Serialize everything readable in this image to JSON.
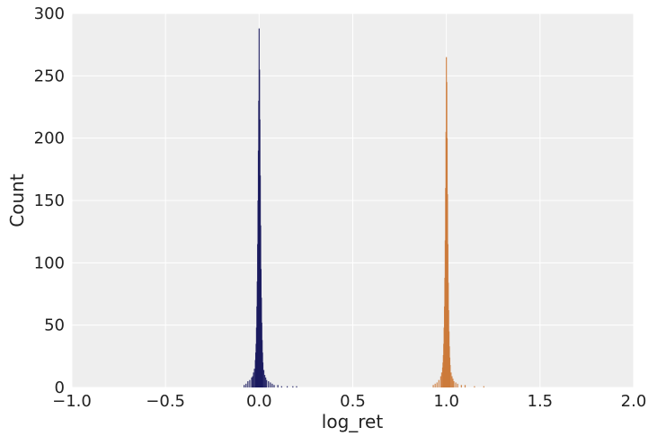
{
  "chart_data": {
    "type": "histogram",
    "title": "",
    "xlabel": "log_ret",
    "ylabel": "Count",
    "xlim": [
      -1.0,
      2.0
    ],
    "ylim": [
      0,
      300
    ],
    "x_ticks": [
      -1.0,
      -0.5,
      0.0,
      0.5,
      1.0,
      1.5,
      2.0
    ],
    "x_tick_labels": [
      "−1.0",
      "−0.5",
      "0.0",
      "0.5",
      "1.0",
      "1.5",
      "2.0"
    ],
    "y_ticks": [
      0,
      50,
      100,
      150,
      200,
      250,
      300
    ],
    "y_tick_labels": [
      "0",
      "50",
      "100",
      "150",
      "200",
      "250",
      "300"
    ],
    "grid": true,
    "background": "#eeeeee",
    "legend": "none",
    "series": [
      {
        "color": "#1a1a5e",
        "bin_width": 0.002,
        "bins": [
          [
            -0.08,
            2
          ],
          [
            -0.07,
            3
          ],
          [
            -0.06,
            5
          ],
          [
            -0.05,
            6
          ],
          [
            -0.04,
            8
          ],
          [
            -0.035,
            9
          ],
          [
            -0.03,
            12
          ],
          [
            -0.025,
            15
          ],
          [
            -0.02,
            22
          ],
          [
            -0.018,
            28
          ],
          [
            -0.016,
            35
          ],
          [
            -0.014,
            48
          ],
          [
            -0.012,
            65
          ],
          [
            -0.01,
            85
          ],
          [
            -0.008,
            115
          ],
          [
            -0.006,
            150
          ],
          [
            -0.004,
            190
          ],
          [
            -0.002,
            230
          ],
          [
            0.0,
            288
          ],
          [
            0.002,
            255
          ],
          [
            0.004,
            215
          ],
          [
            0.006,
            170
          ],
          [
            0.008,
            130
          ],
          [
            0.01,
            95
          ],
          [
            0.012,
            72
          ],
          [
            0.014,
            52
          ],
          [
            0.016,
            38
          ],
          [
            0.018,
            28
          ],
          [
            0.02,
            20
          ],
          [
            0.025,
            14
          ],
          [
            0.03,
            10
          ],
          [
            0.035,
            8
          ],
          [
            0.04,
            6
          ],
          [
            0.05,
            5
          ],
          [
            0.06,
            4
          ],
          [
            0.07,
            3
          ],
          [
            0.08,
            2
          ],
          [
            0.1,
            2
          ],
          [
            0.12,
            1
          ],
          [
            0.15,
            1
          ],
          [
            0.18,
            1
          ],
          [
            0.2,
            1
          ]
        ]
      },
      {
        "color": "#cc7a3a",
        "bin_width": 0.002,
        "bins": [
          [
            0.93,
            2
          ],
          [
            0.94,
            3
          ],
          [
            0.95,
            4
          ],
          [
            0.96,
            6
          ],
          [
            0.97,
            9
          ],
          [
            0.975,
            12
          ],
          [
            0.98,
            16
          ],
          [
            0.982,
            20
          ],
          [
            0.984,
            26
          ],
          [
            0.986,
            35
          ],
          [
            0.988,
            48
          ],
          [
            0.99,
            65
          ],
          [
            0.992,
            88
          ],
          [
            0.994,
            118
          ],
          [
            0.996,
            160
          ],
          [
            0.998,
            205
          ],
          [
            1.0,
            265
          ],
          [
            1.002,
            245
          ],
          [
            1.004,
            200
          ],
          [
            1.006,
            155
          ],
          [
            1.008,
            115
          ],
          [
            1.01,
            84
          ],
          [
            1.012,
            62
          ],
          [
            1.014,
            45
          ],
          [
            1.016,
            33
          ],
          [
            1.018,
            24
          ],
          [
            1.02,
            18
          ],
          [
            1.025,
            12
          ],
          [
            1.03,
            9
          ],
          [
            1.035,
            7
          ],
          [
            1.04,
            5
          ],
          [
            1.05,
            4
          ],
          [
            1.06,
            3
          ],
          [
            1.08,
            2
          ],
          [
            1.1,
            2
          ],
          [
            1.15,
            1
          ],
          [
            1.2,
            1
          ]
        ]
      }
    ]
  }
}
